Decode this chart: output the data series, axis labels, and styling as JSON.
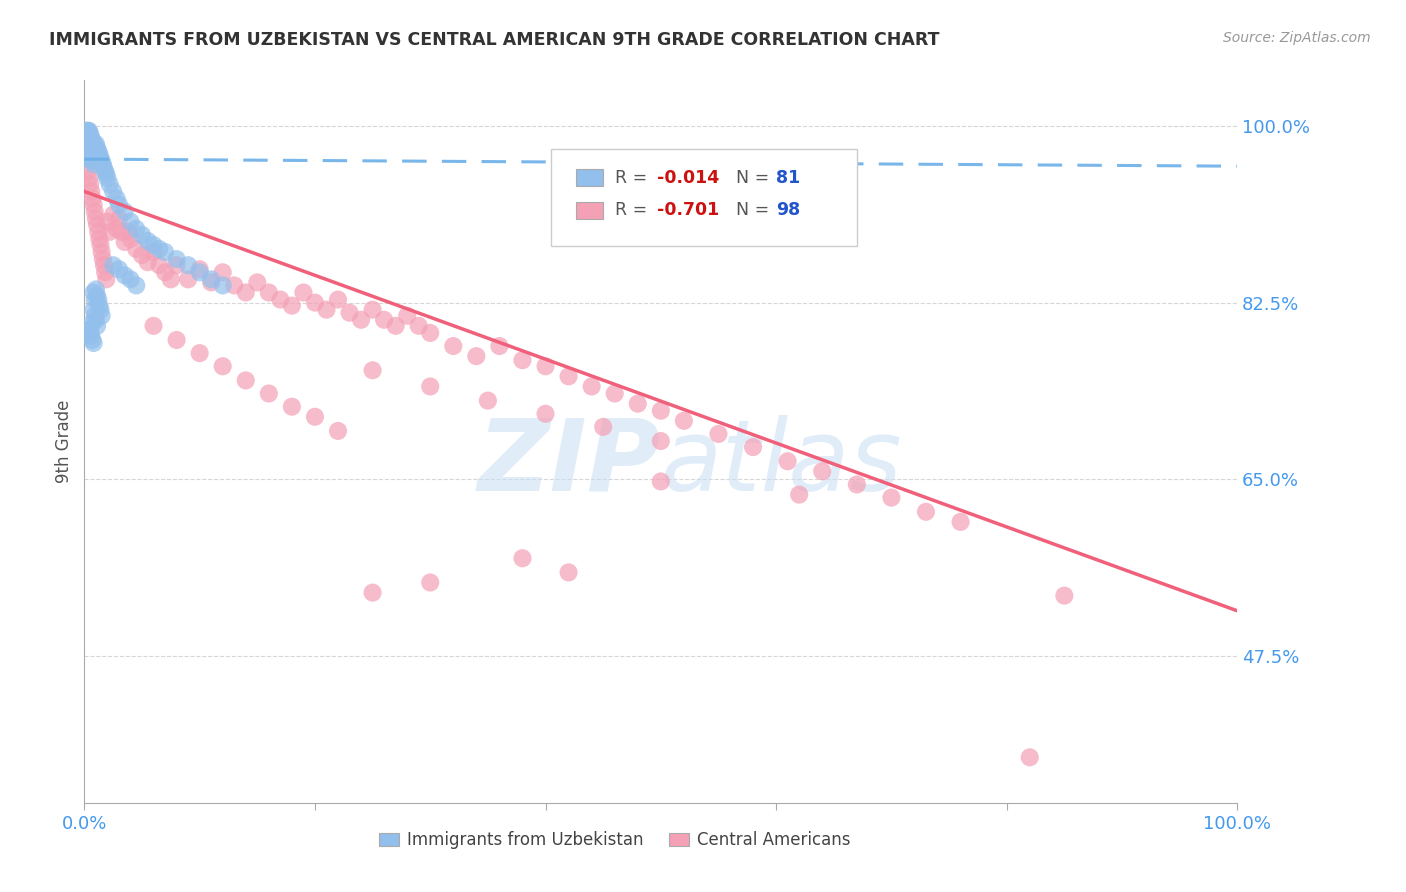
{
  "title": "IMMIGRANTS FROM UZBEKISTAN VS CENTRAL AMERICAN 9TH GRADE CORRELATION CHART",
  "source": "Source: ZipAtlas.com",
  "ylabel": "9th Grade",
  "ytick_labels": [
    "100.0%",
    "82.5%",
    "65.0%",
    "47.5%"
  ],
  "ytick_values": [
    1.0,
    0.825,
    0.65,
    0.475
  ],
  "ymin": 0.33,
  "ymax": 1.045,
  "xmin": 0.0,
  "xmax": 1.0,
  "legend_r1": "-0.014",
  "legend_n1": "81",
  "legend_r2": "-0.701",
  "legend_n2": "98",
  "color_uzbek": "#92bfec",
  "color_central": "#f4a0b5",
  "color_trendline_uzbek": "#6aaee8",
  "color_trendline_central": "#f0607a",
  "color_axis_labels": "#4499ee",
  "color_title": "#333333",
  "color_source": "#999999",
  "watermark_color": "#c8dff5",
  "uzbek_x": [
    0.002,
    0.002,
    0.002,
    0.003,
    0.003,
    0.003,
    0.003,
    0.004,
    0.004,
    0.004,
    0.004,
    0.005,
    0.005,
    0.005,
    0.005,
    0.006,
    0.006,
    0.006,
    0.007,
    0.007,
    0.007,
    0.008,
    0.008,
    0.008,
    0.009,
    0.009,
    0.01,
    0.01,
    0.011,
    0.011,
    0.012,
    0.012,
    0.013,
    0.014,
    0.015,
    0.016,
    0.017,
    0.018,
    0.019,
    0.02,
    0.022,
    0.025,
    0.028,
    0.03,
    0.035,
    0.04,
    0.045,
    0.05,
    0.055,
    0.06,
    0.065,
    0.07,
    0.08,
    0.09,
    0.1,
    0.11,
    0.12,
    0.025,
    0.03,
    0.035,
    0.04,
    0.045,
    0.008,
    0.009,
    0.01,
    0.011,
    0.012,
    0.013,
    0.014,
    0.015,
    0.007,
    0.008,
    0.009,
    0.01,
    0.011,
    0.003,
    0.004,
    0.005,
    0.006,
    0.007,
    0.008
  ],
  "uzbek_y": [
    0.995,
    0.985,
    0.975,
    0.995,
    0.988,
    0.982,
    0.975,
    0.995,
    0.988,
    0.978,
    0.968,
    0.992,
    0.985,
    0.978,
    0.968,
    0.988,
    0.978,
    0.968,
    0.985,
    0.975,
    0.965,
    0.982,
    0.972,
    0.962,
    0.978,
    0.968,
    0.982,
    0.972,
    0.978,
    0.968,
    0.975,
    0.965,
    0.972,
    0.968,
    0.965,
    0.962,
    0.958,
    0.955,
    0.952,
    0.948,
    0.942,
    0.935,
    0.928,
    0.922,
    0.915,
    0.905,
    0.898,
    0.892,
    0.886,
    0.882,
    0.878,
    0.875,
    0.868,
    0.862,
    0.855,
    0.848,
    0.842,
    0.862,
    0.858,
    0.852,
    0.848,
    0.842,
    0.835,
    0.828,
    0.838,
    0.832,
    0.828,
    0.822,
    0.818,
    0.812,
    0.805,
    0.818,
    0.812,
    0.808,
    0.802,
    0.798,
    0.795,
    0.798,
    0.792,
    0.788,
    0.785
  ],
  "central_x": [
    0.003,
    0.004,
    0.005,
    0.006,
    0.007,
    0.008,
    0.009,
    0.01,
    0.011,
    0.012,
    0.013,
    0.014,
    0.015,
    0.016,
    0.017,
    0.018,
    0.019,
    0.02,
    0.022,
    0.025,
    0.028,
    0.03,
    0.032,
    0.035,
    0.038,
    0.04,
    0.045,
    0.05,
    0.055,
    0.06,
    0.065,
    0.07,
    0.075,
    0.08,
    0.09,
    0.1,
    0.11,
    0.12,
    0.13,
    0.14,
    0.15,
    0.16,
    0.17,
    0.18,
    0.19,
    0.2,
    0.21,
    0.22,
    0.23,
    0.24,
    0.25,
    0.26,
    0.27,
    0.28,
    0.29,
    0.3,
    0.32,
    0.34,
    0.36,
    0.38,
    0.4,
    0.42,
    0.44,
    0.46,
    0.48,
    0.5,
    0.52,
    0.55,
    0.58,
    0.61,
    0.64,
    0.67,
    0.7,
    0.73,
    0.76,
    0.4,
    0.45,
    0.5,
    0.25,
    0.3,
    0.35,
    0.06,
    0.08,
    0.1,
    0.12,
    0.14,
    0.16,
    0.18,
    0.2,
    0.22,
    0.85,
    0.62,
    0.5,
    0.38,
    0.42,
    0.3,
    0.25,
    0.82
  ],
  "central_y": [
    0.955,
    0.948,
    0.942,
    0.935,
    0.928,
    0.922,
    0.915,
    0.908,
    0.902,
    0.895,
    0.888,
    0.882,
    0.875,
    0.868,
    0.862,
    0.855,
    0.848,
    0.905,
    0.895,
    0.912,
    0.898,
    0.908,
    0.895,
    0.885,
    0.895,
    0.888,
    0.878,
    0.872,
    0.865,
    0.875,
    0.862,
    0.855,
    0.848,
    0.862,
    0.848,
    0.858,
    0.845,
    0.855,
    0.842,
    0.835,
    0.845,
    0.835,
    0.828,
    0.822,
    0.835,
    0.825,
    0.818,
    0.828,
    0.815,
    0.808,
    0.818,
    0.808,
    0.802,
    0.812,
    0.802,
    0.795,
    0.782,
    0.772,
    0.782,
    0.768,
    0.762,
    0.752,
    0.742,
    0.735,
    0.725,
    0.718,
    0.708,
    0.695,
    0.682,
    0.668,
    0.658,
    0.645,
    0.632,
    0.618,
    0.608,
    0.715,
    0.702,
    0.688,
    0.758,
    0.742,
    0.728,
    0.802,
    0.788,
    0.775,
    0.762,
    0.748,
    0.735,
    0.722,
    0.712,
    0.698,
    0.535,
    0.635,
    0.648,
    0.572,
    0.558,
    0.548,
    0.538,
    0.375
  ]
}
